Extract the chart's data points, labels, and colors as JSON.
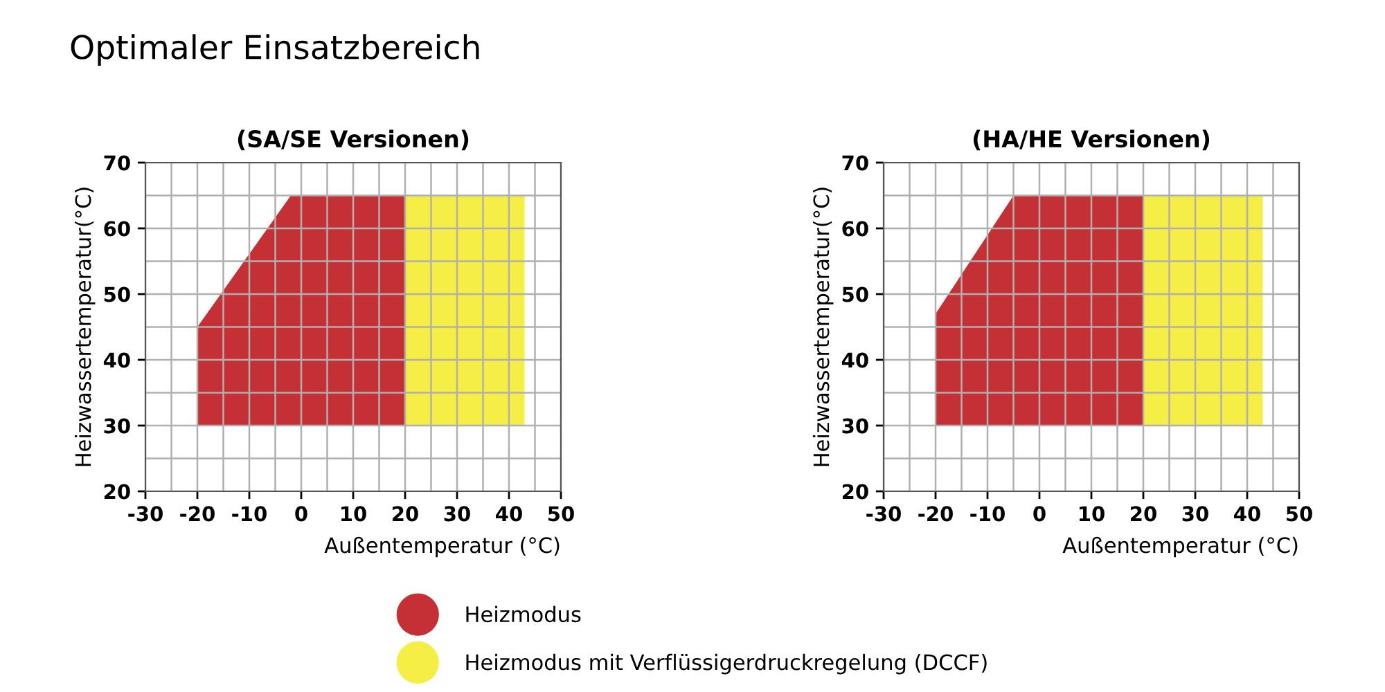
{
  "chart_data": [
    {
      "type": "area",
      "title": "Optimaler Einsatzbereich",
      "subtitle": "(SA/SE Versionen)",
      "xlabel": "Außentemperatur (°C)",
      "ylabel": "Heizwassertemperatur(°C)",
      "series": [
        {
          "name": "Heizmodus",
          "color": "#c53034",
          "x": [
            -20,
            -2,
            20,
            20,
            -20
          ],
          "values": [
            45,
            65,
            65,
            30,
            30
          ]
        },
        {
          "name": "Heizmodus mit Verflüssigerdruckregelung (DCCF)",
          "color": "#f5ee45",
          "x": [
            20,
            43,
            43,
            20
          ],
          "values": [
            65,
            65,
            30,
            30
          ]
        }
      ],
      "xlim": [
        -30,
        50
      ],
      "ylim": [
        20,
        70
      ],
      "xticks": [
        -30,
        {
          "value": -25,
          "label": null
        },
        -20,
        {
          "value": -15,
          "label": null
        },
        -10,
        {
          "value": -5,
          "label": null
        },
        0,
        {
          "value": 5,
          "label": null
        },
        10,
        {
          "value": 15,
          "label": null
        },
        20,
        {
          "value": 25,
          "label": null
        },
        30,
        {
          "value": 35,
          "label": null
        },
        40,
        {
          "value": 45,
          "label": null
        },
        50
      ],
      "yticks": [
        20,
        {
          "value": 25,
          "label": null
        },
        30,
        {
          "value": 35,
          "label": null
        },
        40,
        {
          "value": 45,
          "label": null
        },
        50,
        {
          "value": 55,
          "label": null
        },
        60,
        {
          "value": 65,
          "label": null
        },
        70
      ],
      "grid": true,
      "legend": "bottom"
    },
    {
      "type": "area",
      "subtitle": "(HA/HE Versionen)",
      "xlabel": "Außentemperatur (°C)",
      "ylabel": "Heizwassertemperatur(°C)",
      "series": [
        {
          "color": "#c53034",
          "x": [
            -20,
            -5,
            20,
            20,
            -20
          ],
          "values": [
            47,
            65,
            65,
            30,
            30
          ]
        },
        {
          "color": "#f5ee45",
          "x": [
            20,
            43,
            43,
            20
          ],
          "values": [
            65,
            65,
            30,
            30
          ]
        }
      ],
      "xlim": [
        -30,
        50
      ],
      "ylim": [
        20,
        70
      ],
      "xticks": [
        -30,
        {
          "value": -25,
          "label": null
        },
        -20,
        {
          "value": -15,
          "label": null
        },
        -10,
        {
          "value": -5,
          "label": null
        },
        0,
        {
          "value": 5,
          "label": null
        },
        10,
        {
          "value": 15,
          "label": null
        },
        20,
        {
          "value": 25,
          "label": null
        },
        30,
        {
          "value": 35,
          "label": null
        },
        40,
        {
          "value": 45,
          "label": null
        },
        50
      ],
      "yticks": [
        20,
        {
          "value": 25,
          "label": null
        },
        30,
        {
          "value": 35,
          "label": null
        },
        40,
        {
          "value": 45,
          "label": null
        },
        50,
        {
          "value": 55,
          "label": null
        },
        60,
        {
          "value": 65,
          "label": null
        },
        70
      ],
      "grid": true
    }
  ]
}
